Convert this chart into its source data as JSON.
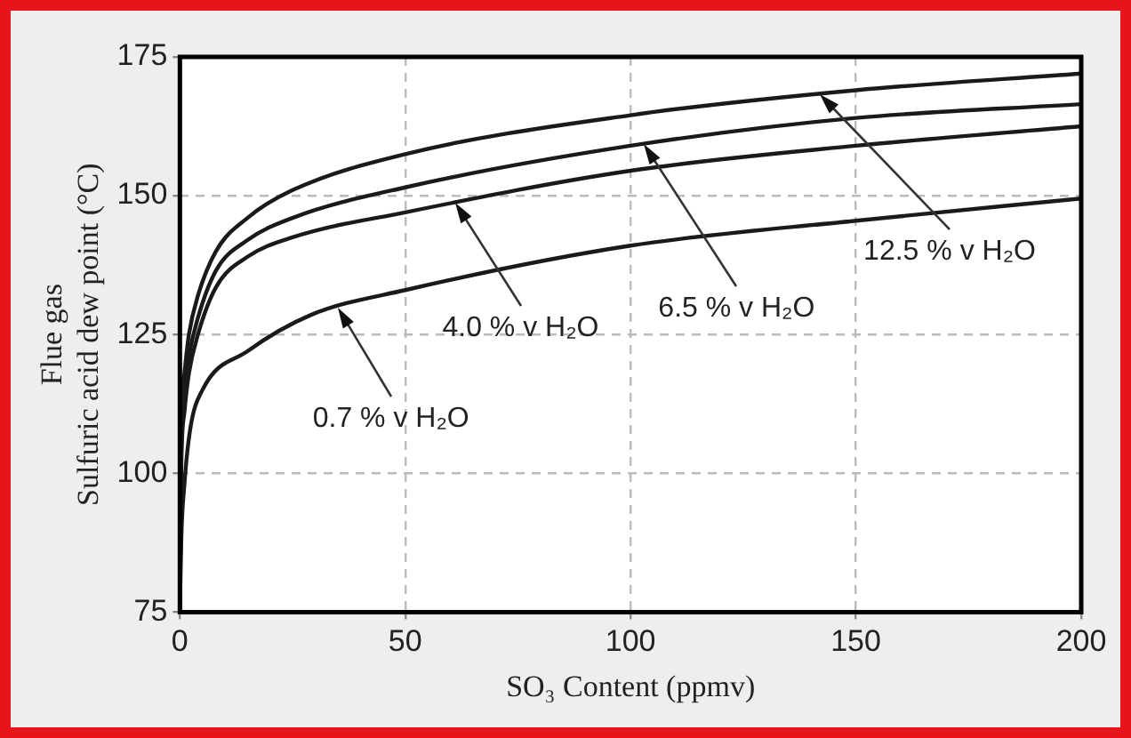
{
  "chart_data": {
    "type": "line",
    "xlabel": "SO₃ Content (ppmv)",
    "ylabel": "Flue gas\nSulfuric acid dew point (°C)",
    "xlim": [
      0,
      200
    ],
    "xticks": [
      0,
      50,
      100,
      150,
      200
    ],
    "ylim": [
      75,
      175
    ],
    "yticks": [
      75,
      100,
      125,
      150,
      175
    ],
    "grid": true,
    "legend": false,
    "marker": "none",
    "line_style": "solid",
    "series": [
      {
        "color": "#1a1a1a",
        "x": [
          0,
          0.3,
          1,
          2,
          4,
          8,
          15,
          25,
          50,
          100,
          150,
          200
        ],
        "values": [
          75,
          108,
          118,
          125,
          132,
          140,
          146,
          151,
          157.5,
          164.5,
          169,
          172
        ]
      },
      {
        "color": "#1a1a1a",
        "x": [
          0,
          0.3,
          1,
          2,
          4,
          8,
          15,
          25,
          50,
          100,
          150,
          200
        ],
        "values": [
          75,
          104,
          114,
          121,
          128,
          136.5,
          142,
          146,
          151.5,
          159,
          164,
          166.5
        ]
      },
      {
        "color": "#1a1a1a",
        "x": [
          0,
          0.3,
          1,
          2,
          4,
          8,
          15,
          25,
          50,
          100,
          150,
          200
        ],
        "values": [
          75,
          101,
          111,
          118,
          125,
          133.5,
          139,
          142.5,
          147,
          154.5,
          159,
          162.5
        ]
      },
      {
        "color": "#1a1a1a",
        "x": [
          0,
          0.3,
          1,
          2.3,
          5,
          15,
          29,
          50,
          100,
          150,
          200
        ],
        "values": [
          75,
          88,
          98,
          108,
          115,
          122,
          128.5,
          133,
          141,
          145.5,
          149.5
        ]
      }
    ],
    "annotations": [
      {
        "text": "0.7 % v H₂O",
        "x": 35,
        "y": 129.8
      },
      {
        "text": "4.0 % v H₂O",
        "x": 61,
        "y": 148.7
      },
      {
        "text": "6.5 % v H₂O",
        "x": 103,
        "y": 159.3
      },
      {
        "text": "12.5 % v H₂O",
        "x": 142,
        "y": 168.3
      }
    ]
  }
}
